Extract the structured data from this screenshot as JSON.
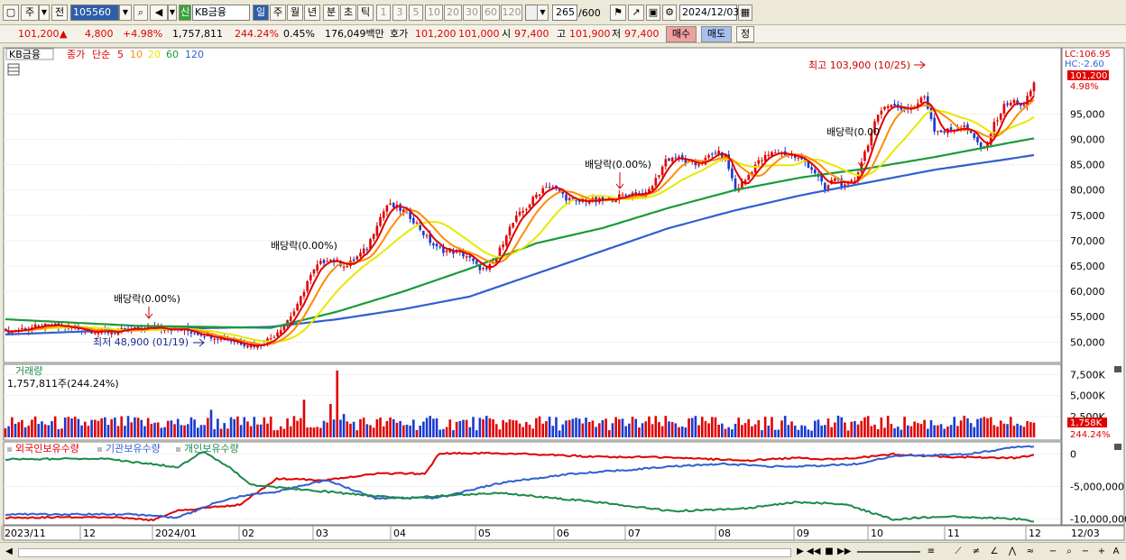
{
  "toolbar": {
    "mode": "주",
    "prefix": "전",
    "code": "105560",
    "name_tag": "신",
    "name": "KB금융",
    "periods": [
      "일",
      "주",
      "월",
      "년",
      "분",
      "초",
      "틱"
    ],
    "selected_period": "일",
    "intervals": [
      "1",
      "3",
      "5",
      "10",
      "20",
      "30",
      "60",
      "120"
    ],
    "count": "265",
    "count_total": "/600",
    "date": "2024/12/03"
  },
  "quote": {
    "price": "101,200",
    "arrow": "▲",
    "change": "4,800",
    "change_pct": "+4.98%",
    "volume": "1,757,811",
    "volume_ratio": "244.24%",
    "turnover": "0.45%",
    "amount": "176,049백만",
    "hoga_label": "호가",
    "ask": "101,200",
    "bid": "101,000",
    "open_label": "시",
    "open": "97,400",
    "high_label": "고",
    "high": "101,900",
    "low_label": "저",
    "low": "97,400",
    "buy_label": "매수",
    "sell_label": "매도",
    "correct_label": "정"
  },
  "legend": {
    "name": "KB금융",
    "close_label": "종가",
    "ma_label": "단순",
    "mas": [
      {
        "period": "5",
        "color": "#e00000"
      },
      {
        "period": "10",
        "color": "#ff8c00"
      },
      {
        "period": "20",
        "color": "#e8e800"
      },
      {
        "period": "60",
        "color": "#1a9a3a"
      },
      {
        "period": "120",
        "color": "#2f5fd0"
      }
    ]
  },
  "axis_labels": {
    "lc": "LC:106.95",
    "hc": "HC:-2.60",
    "last_price": "101,200",
    "last_pct": "4.98%",
    "vol_last": "1,758K",
    "vol_pct": "244.24%"
  },
  "annotations": {
    "high": "최고 103,900 (10/25)",
    "low": "최저 48,900 (01/19)",
    "div1": "배당락(0.00%)",
    "div2": "배당락(0.00%)",
    "div3": "배당락(0.00%)",
    "div4": "배당락(0.00"
  },
  "volume_panel": {
    "title": "거래량",
    "info": "1,757,811주(244.24%)"
  },
  "holdings_panel": {
    "series": [
      "외국인보유수량",
      "기관보유수량",
      "개인보유수량"
    ],
    "colors": [
      "#e00000",
      "#2f5fd0",
      "#1a8a4a"
    ]
  },
  "bottom": {
    "zoom_minus": "−",
    "zoom_plus": "+",
    "font_a": "A"
  },
  "chart_data": [
    {
      "type": "candlestick",
      "title": "KB금융",
      "ylim": [
        46500,
        107000
      ],
      "yticks": [
        50000,
        55000,
        60000,
        65000,
        70000,
        75000,
        80000,
        85000,
        90000,
        95000
      ],
      "ytick_labels": [
        "50,000",
        "55,000",
        "60,000",
        "65,000",
        "70,000",
        "75,000",
        "80,000",
        "85,000",
        "90,000",
        "95,000"
      ],
      "x_labels": [
        "2023/11",
        "12",
        "2024/01",
        "02",
        "03",
        "04",
        "05",
        "06",
        "07",
        "08",
        "09",
        "10",
        "11",
        "12",
        "12/03"
      ],
      "close_anchors": [
        [
          0,
          52000
        ],
        [
          6,
          52700
        ],
        [
          14,
          53200
        ],
        [
          22,
          52600
        ],
        [
          30,
          52000
        ],
        [
          38,
          52300
        ],
        [
          46,
          53000
        ],
        [
          54,
          52300
        ],
        [
          62,
          51300
        ],
        [
          70,
          50000
        ],
        [
          76,
          49300
        ],
        [
          80,
          50800
        ],
        [
          84,
          53500
        ],
        [
          88,
          57000
        ],
        [
          91,
          62000
        ],
        [
          94,
          65000
        ],
        [
          97,
          66500
        ],
        [
          100,
          65800
        ],
        [
          103,
          65000
        ],
        [
          106,
          66800
        ],
        [
          109,
          68500
        ],
        [
          112,
          73500
        ],
        [
          115,
          77000
        ],
        [
          118,
          76500
        ],
        [
          121,
          75500
        ],
        [
          124,
          73300
        ],
        [
          127,
          70500
        ],
        [
          130,
          68500
        ],
        [
          133,
          68000
        ],
        [
          136,
          67800
        ],
        [
          139,
          67000
        ],
        [
          142,
          65000
        ],
        [
          145,
          64000
        ],
        [
          148,
          66500
        ],
        [
          151,
          71500
        ],
        [
          154,
          74500
        ],
        [
          157,
          76500
        ],
        [
          160,
          79000
        ],
        [
          163,
          81000
        ],
        [
          166,
          80000
        ],
        [
          169,
          78500
        ],
        [
          172,
          77500
        ],
        [
          175,
          78000
        ],
        [
          178,
          77800
        ],
        [
          181,
          78000
        ],
        [
          184,
          78500
        ],
        [
          187,
          79000
        ],
        [
          190,
          79500
        ],
        [
          193,
          79000
        ],
        [
          196,
          82000
        ],
        [
          199,
          86000
        ],
        [
          202,
          86500
        ],
        [
          205,
          85500
        ],
        [
          208,
          85000
        ],
        [
          211,
          86000
        ],
        [
          214,
          87500
        ],
        [
          217,
          86500
        ],
        [
          220,
          80000
        ],
        [
          223,
          82000
        ],
        [
          226,
          85000
        ],
        [
          229,
          86500
        ],
        [
          232,
          87500
        ],
        [
          235,
          87200
        ],
        [
          238,
          86500
        ],
        [
          241,
          85500
        ],
        [
          244,
          83500
        ],
        [
          247,
          80000
        ],
        [
          250,
          82500
        ],
        [
          253,
          80500
        ],
        [
          256,
          82000
        ],
        [
          259,
          87500
        ],
        [
          262,
          93000
        ],
        [
          265,
          97000
        ],
        [
          268,
          96500
        ],
        [
          271,
          96000
        ],
        [
          274,
          96500
        ],
        [
          277,
          98500
        ],
        [
          280,
          92000
        ],
        [
          283,
          91500
        ],
        [
          286,
          92000
        ],
        [
          289,
          92500
        ],
        [
          292,
          90000
        ],
        [
          295,
          88000
        ],
        [
          298,
          93000
        ],
        [
          301,
          96500
        ],
        [
          304,
          97500
        ],
        [
          307,
          96500
        ],
        [
          310,
          101200
        ]
      ],
      "ma_anchors": {
        "ma60": [
          [
            0,
            54500
          ],
          [
            40,
            53200
          ],
          [
            80,
            52800
          ],
          [
            100,
            56000
          ],
          [
            120,
            60000
          ],
          [
            140,
            64500
          ],
          [
            160,
            69500
          ],
          [
            180,
            72500
          ],
          [
            200,
            76500
          ],
          [
            220,
            80000
          ],
          [
            240,
            82500
          ],
          [
            260,
            84300
          ],
          [
            280,
            86500
          ],
          [
            300,
            89000
          ],
          [
            310,
            90200
          ]
        ],
        "ma120": [
          [
            0,
            51500
          ],
          [
            40,
            52500
          ],
          [
            80,
            53000
          ],
          [
            100,
            54500
          ],
          [
            120,
            56500
          ],
          [
            140,
            59000
          ],
          [
            160,
            63500
          ],
          [
            180,
            68000
          ],
          [
            200,
            72500
          ],
          [
            220,
            76000
          ],
          [
            240,
            79000
          ],
          [
            260,
            81500
          ],
          [
            280,
            84000
          ],
          [
            300,
            85900
          ],
          [
            310,
            86900
          ]
        ]
      },
      "high": 103900,
      "low": 48900,
      "last": 101200
    },
    {
      "type": "bar",
      "title": "거래량",
      "ylim": [
        0,
        8200000
      ],
      "yticks": [
        2500000,
        5000000,
        7500000
      ],
      "ytick_labels": [
        "2,500K",
        "5,000K",
        "7,500K"
      ],
      "last": 1757811,
      "ratio_pct": 244.24
    },
    {
      "type": "line",
      "title": "외국인보유수량 / 기관보유수량 / 개인보유수량",
      "ylim": [
        -10500000,
        1200000
      ],
      "yticks": [
        0,
        -5000000,
        -10000000
      ],
      "ytick_labels": [
        "0",
        "-5,000,000",
        "-10,000,000"
      ],
      "series": [
        {
          "name": "외국인보유수량",
          "color": "#e00000",
          "anchors": [
            [
              0,
              -9800000
            ],
            [
              40,
              -9700000
            ],
            [
              60,
              -10200000
            ],
            [
              70,
              -8700000
            ],
            [
              95,
              -7800000
            ],
            [
              110,
              -3800000
            ],
            [
              130,
              -4000000
            ],
            [
              150,
              -3000000
            ],
            [
              170,
              -3000000
            ],
            [
              176,
              90000
            ],
            [
              200,
              150000
            ],
            [
              240,
              -400000
            ],
            [
              270,
              -500000
            ],
            [
              300,
              -1000000
            ],
            [
              320,
              -600000
            ],
            [
              335,
              -800000
            ],
            [
              345,
              -600000
            ],
            [
              360,
              0
            ],
            [
              380,
              -400000
            ],
            [
              410,
              -600000
            ],
            [
              417,
              -100000
            ]
          ]
        },
        {
          "name": "기관보유수량",
          "color": "#2f5fd0",
          "anchors": [
            [
              0,
              -9300000
            ],
            [
              50,
              -9300000
            ],
            [
              70,
              -9800000
            ],
            [
              85,
              -7500000
            ],
            [
              95,
              -6500000
            ],
            [
              110,
              -5800000
            ],
            [
              130,
              -4000000
            ],
            [
              150,
              -6800000
            ],
            [
              175,
              -6800000
            ],
            [
              200,
              -4500000
            ],
            [
              230,
              -3000000
            ],
            [
              250,
              -2500000
            ],
            [
              270,
              -1900000
            ],
            [
              290,
              -1500000
            ],
            [
              310,
              -1900000
            ],
            [
              330,
              -1800000
            ],
            [
              345,
              -1500000
            ],
            [
              360,
              -300000
            ],
            [
              390,
              0
            ],
            [
              410,
              1100000
            ],
            [
              417,
              1200000
            ]
          ]
        },
        {
          "name": "개인보유수량",
          "color": "#1a8a4a",
          "anchors": [
            [
              0,
              -800000
            ],
            [
              40,
              -700000
            ],
            [
              70,
              -2000000
            ],
            [
              80,
              400000
            ],
            [
              90,
              -1800000
            ],
            [
              100,
              -4800000
            ],
            [
              130,
              -5800000
            ],
            [
              160,
              -6800000
            ],
            [
              200,
              -6000000
            ],
            [
              240,
              -7400000
            ],
            [
              270,
              -8800000
            ],
            [
              300,
              -8400000
            ],
            [
              320,
              -7400000
            ],
            [
              340,
              -7700000
            ],
            [
              360,
              -10100000
            ],
            [
              380,
              -9600000
            ],
            [
              410,
              -10000000
            ],
            [
              417,
              -10400000
            ]
          ]
        }
      ]
    }
  ]
}
